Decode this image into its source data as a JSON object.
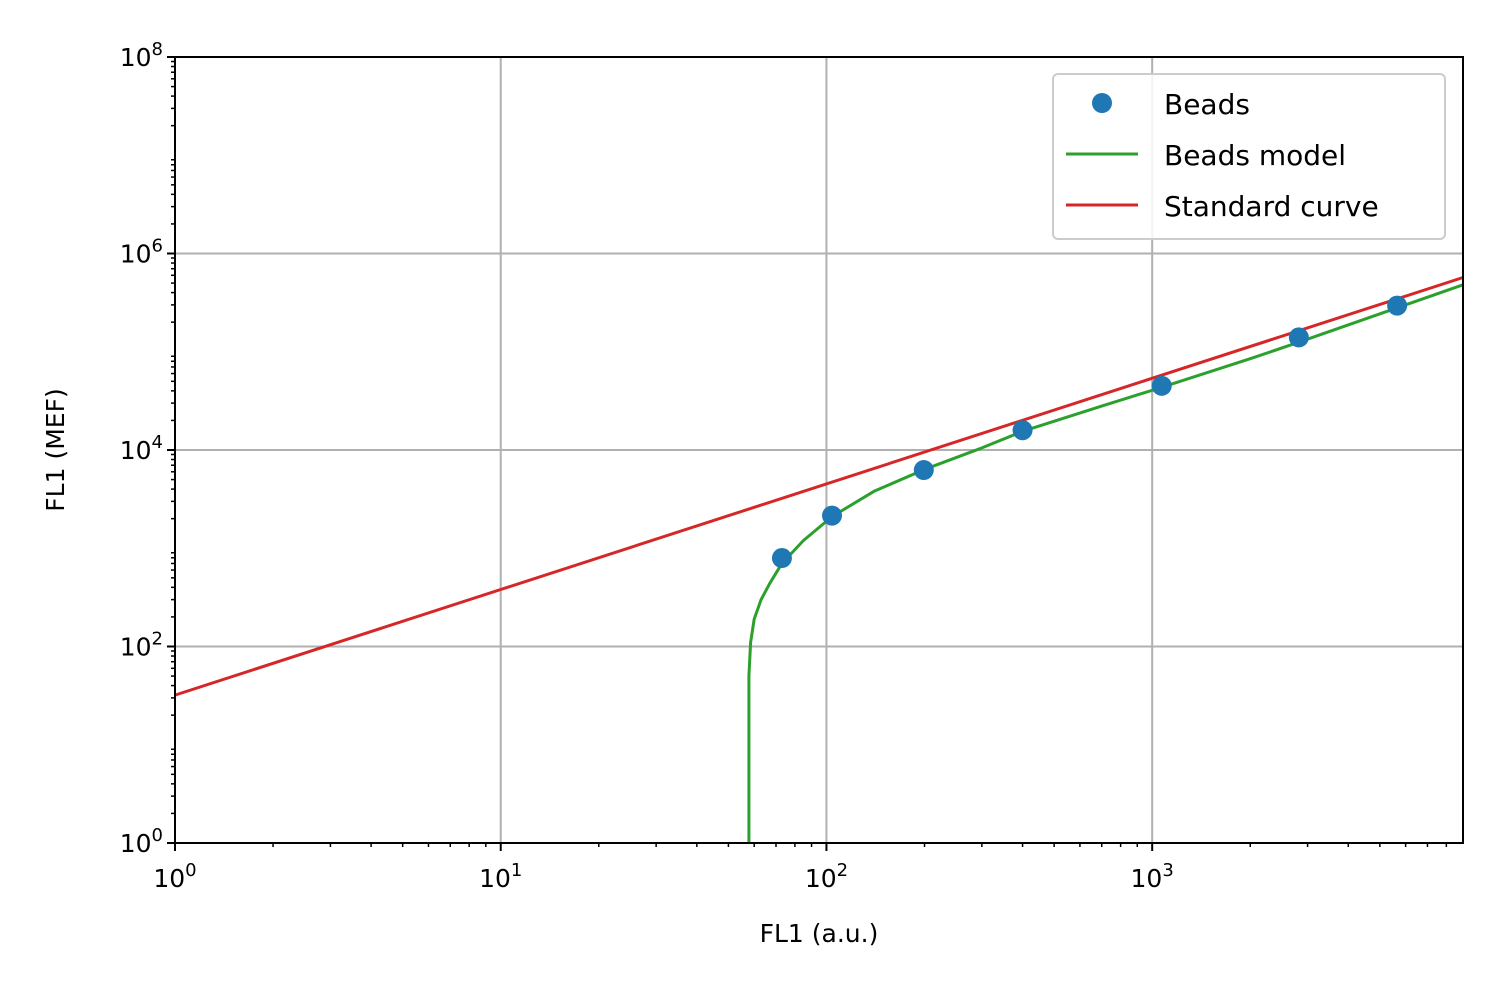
{
  "chart_data": {
    "type": "line",
    "xlabel": "FL1 (a.u.)",
    "ylabel": "FL1 (MEF)",
    "x_scale": "log",
    "y_scale": "log",
    "xlim": [
      1,
      9000
    ],
    "ylim": [
      1,
      100000000
    ],
    "x_ticks": [
      {
        "value": 1,
        "base": "10",
        "exp": "0"
      },
      {
        "value": 10,
        "base": "10",
        "exp": "1"
      },
      {
        "value": 100,
        "base": "10",
        "exp": "2"
      },
      {
        "value": 1000,
        "base": "10",
        "exp": "3"
      }
    ],
    "y_ticks": [
      {
        "value": 1,
        "base": "10",
        "exp": "0"
      },
      {
        "value": 100,
        "base": "10",
        "exp": "2"
      },
      {
        "value": 10000,
        "base": "10",
        "exp": "4"
      },
      {
        "value": 1000000,
        "base": "10",
        "exp": "6"
      },
      {
        "value": 100000000,
        "base": "10",
        "exp": "8"
      }
    ],
    "grid": true,
    "legend_position": "top-right",
    "series": [
      {
        "name": "Beads",
        "kind": "scatter",
        "color": "#1f77b4",
        "x": [
          73,
          104,
          199,
          400,
          1070,
          2820,
          5650
        ],
        "y": [
          795,
          2150,
          6250,
          15900,
          45000,
          140000,
          295000
        ]
      },
      {
        "name": "Beads model",
        "kind": "line",
        "color": "#2ca02c",
        "x": [
          57.8,
          57.8,
          57.8,
          58.5,
          60,
          63,
          67,
          73,
          85,
          104,
          140,
          199,
          300,
          400,
          700,
          1070,
          2000,
          2820,
          5650,
          9000
        ],
        "y": [
          1,
          10,
          50,
          110,
          190,
          300,
          440,
          700,
          1200,
          2100,
          3800,
          6300,
          10500,
          15500,
          28000,
          43500,
          85000,
          125000,
          280000,
          480000
        ]
      },
      {
        "name": "Standard curve",
        "kind": "line",
        "color": "#d62728",
        "x": [
          1,
          9000
        ],
        "y": [
          32,
          570000
        ]
      }
    ]
  }
}
